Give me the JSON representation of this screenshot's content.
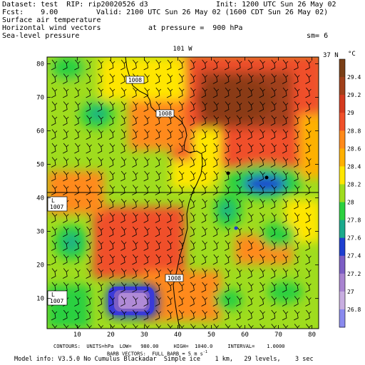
{
  "header": {
    "dataset": "Dataset: test  RIP: rip20020526 d3",
    "init": "Init: 1200 UTC Sun 26 May 02",
    "fcst": "Fcst:    9.00",
    "valid": "Valid: 2100 UTC Sun 26 May 02 (1600 CDT Sun 26 May 02)",
    "line3": "Surface air temperature",
    "line4": "Horizontal wind vectors",
    "pressure": "at pressure =  900 hPa",
    "line5": "Sea-level pressure",
    "sm": "sm= 6"
  },
  "map": {
    "top_label": "101 W",
    "right_label": "37 N",
    "unit": "°C",
    "lat_line_y": 41,
    "lon_line_x": 41,
    "x_ticks": [
      10,
      20,
      30,
      40,
      50,
      60,
      70,
      80
    ],
    "y_ticks": [
      10,
      20,
      30,
      40,
      50,
      60,
      70,
      80
    ],
    "x_range": [
      1,
      82
    ],
    "y_range": [
      1,
      82
    ],
    "contour_labels": [
      "1008",
      "1008",
      "1008"
    ],
    "low_labels": [
      {
        "letter": "L",
        "value": "1007"
      },
      {
        "letter": "L",
        "value": "1007"
      }
    ],
    "colorbar_labels": [
      "29.4",
      "29.2",
      "29",
      "28.8",
      "28.6",
      "28.4",
      "28.2",
      "28",
      "27.8",
      "27.6",
      "27.4",
      "27.2",
      "27",
      "26.8"
    ],
    "colorbar_colors": [
      "#7a3f16",
      "#a0401a",
      "#d43a1e",
      "#f0502a",
      "#ff8a1a",
      "#ffb000",
      "#ffe600",
      "#9fdc1e",
      "#2cd040",
      "#1aaa8c",
      "#1e3fd0",
      "#7c5ec4",
      "#a883d0",
      "#c8aee0",
      "#8a8aee"
    ]
  },
  "footer": {
    "line1": "CONTOURS:  UNITS=hPa  LOW=   980.00     HIGH=  1040.0     INTERVAL=    1.0000",
    "line2": "BARB VECTORS:  FULL BARB = 5 m s",
    "line2_exp": "-1",
    "line3": "Model info: V3.5.0 No Cumulus Blackadar  Simple ice    1 km,   29 levels,    3 sec"
  }
}
